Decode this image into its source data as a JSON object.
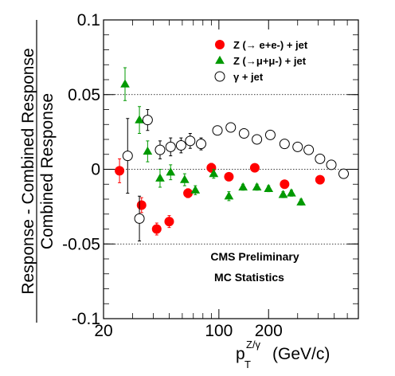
{
  "chart_data": {
    "type": "scatter",
    "xscale": "log",
    "xlim": [
      20,
      700
    ],
    "ylim": [
      -0.1,
      0.1
    ],
    "xticks": [
      {
        "value": 20,
        "label": "20"
      },
      {
        "value": 100,
        "label": "100"
      },
      {
        "value": 200,
        "label": "200"
      }
    ],
    "yticks": [
      {
        "value": 0.1,
        "label": "0.1"
      },
      {
        "value": 0.05,
        "label": "0.05"
      },
      {
        "value": 0,
        "label": "0"
      },
      {
        "value": -0.05,
        "label": "-0.05"
      },
      {
        "value": -0.1,
        "label": "-0.1"
      }
    ],
    "reference_lines": [
      0.05,
      0,
      -0.05
    ],
    "ylabel_top": "Response - Combined Response",
    "ylabel_bottom": "Combined Response",
    "xlabel": {
      "base": "p",
      "sub": "T",
      "sup": "Z/γ",
      "unit": " (GeV/c)"
    },
    "annotations": [
      "CMS Preliminary",
      "MC Statistics"
    ],
    "legend_position": "top-right",
    "series": [
      {
        "name": "Z (→ e+e-) + jet",
        "marker": "filled-circle",
        "color": "#ff0000",
        "points": [
          {
            "x": 25,
            "y": -0.001,
            "err": 0.008
          },
          {
            "x": 34,
            "y": -0.024,
            "err": 0.005
          },
          {
            "x": 42,
            "y": -0.04,
            "err": 0.004
          },
          {
            "x": 50,
            "y": -0.035,
            "err": 0.004
          },
          {
            "x": 65,
            "y": -0.016,
            "err": 0.003
          },
          {
            "x": 90,
            "y": 0.001,
            "err": 0.003
          },
          {
            "x": 115,
            "y": -0.005,
            "err": 0.002
          },
          {
            "x": 165,
            "y": 0.001,
            "err": 0.002
          },
          {
            "x": 250,
            "y": -0.01,
            "err": 0.002
          },
          {
            "x": 410,
            "y": -0.007,
            "err": 0.002
          }
        ]
      },
      {
        "name": "Z (→μ+μ-) + jet",
        "marker": "filled-triangle",
        "color": "#009900",
        "points": [
          {
            "x": 27,
            "y": 0.057,
            "err": 0.011
          },
          {
            "x": 33,
            "y": 0.033,
            "err": 0.009
          },
          {
            "x": 37,
            "y": 0.012,
            "err": 0.007
          },
          {
            "x": 44,
            "y": -0.006,
            "err": 0.006
          },
          {
            "x": 51,
            "y": -0.002,
            "err": 0.005
          },
          {
            "x": 62,
            "y": -0.007,
            "err": 0.004
          },
          {
            "x": 72,
            "y": -0.014,
            "err": 0.003
          },
          {
            "x": 93,
            "y": -0.003,
            "err": 0.003
          },
          {
            "x": 115,
            "y": -0.018,
            "err": 0.003
          },
          {
            "x": 140,
            "y": -0.012,
            "err": 0.002
          },
          {
            "x": 170,
            "y": -0.012,
            "err": 0.002
          },
          {
            "x": 200,
            "y": -0.013,
            "err": 0.002
          },
          {
            "x": 245,
            "y": -0.017,
            "err": 0.002
          },
          {
            "x": 275,
            "y": -0.016,
            "err": 0.002
          },
          {
            "x": 315,
            "y": -0.022,
            "err": 0.002
          }
        ]
      },
      {
        "name": "γ + jet",
        "marker": "open-circle",
        "color": "#000000",
        "points": [
          {
            "x": 28,
            "y": 0.009,
            "err": 0.025
          },
          {
            "x": 33,
            "y": -0.033,
            "err": 0.015
          },
          {
            "x": 37,
            "y": 0.033,
            "err": 0.007
          },
          {
            "x": 44,
            "y": 0.013,
            "err": 0.006
          },
          {
            "x": 51,
            "y": 0.015,
            "err": 0.006
          },
          {
            "x": 59,
            "y": 0.016,
            "err": 0.005
          },
          {
            "x": 67,
            "y": 0.019,
            "err": 0.005
          },
          {
            "x": 78,
            "y": 0.017,
            "err": 0.004
          },
          {
            "x": 98,
            "y": 0.026,
            "err": 0.003
          },
          {
            "x": 118,
            "y": 0.028,
            "err": 0.003
          },
          {
            "x": 142,
            "y": 0.024,
            "err": 0.003
          },
          {
            "x": 170,
            "y": 0.02,
            "err": 0.002
          },
          {
            "x": 205,
            "y": 0.023,
            "err": 0.002
          },
          {
            "x": 250,
            "y": 0.017,
            "err": 0.002
          },
          {
            "x": 300,
            "y": 0.015,
            "err": 0.002
          },
          {
            "x": 350,
            "y": 0.013,
            "err": 0.002
          },
          {
            "x": 410,
            "y": 0.007,
            "err": 0.002
          },
          {
            "x": 480,
            "y": 0.003,
            "err": 0.002
          },
          {
            "x": 570,
            "y": -0.003,
            "err": 0.002
          }
        ]
      }
    ]
  }
}
